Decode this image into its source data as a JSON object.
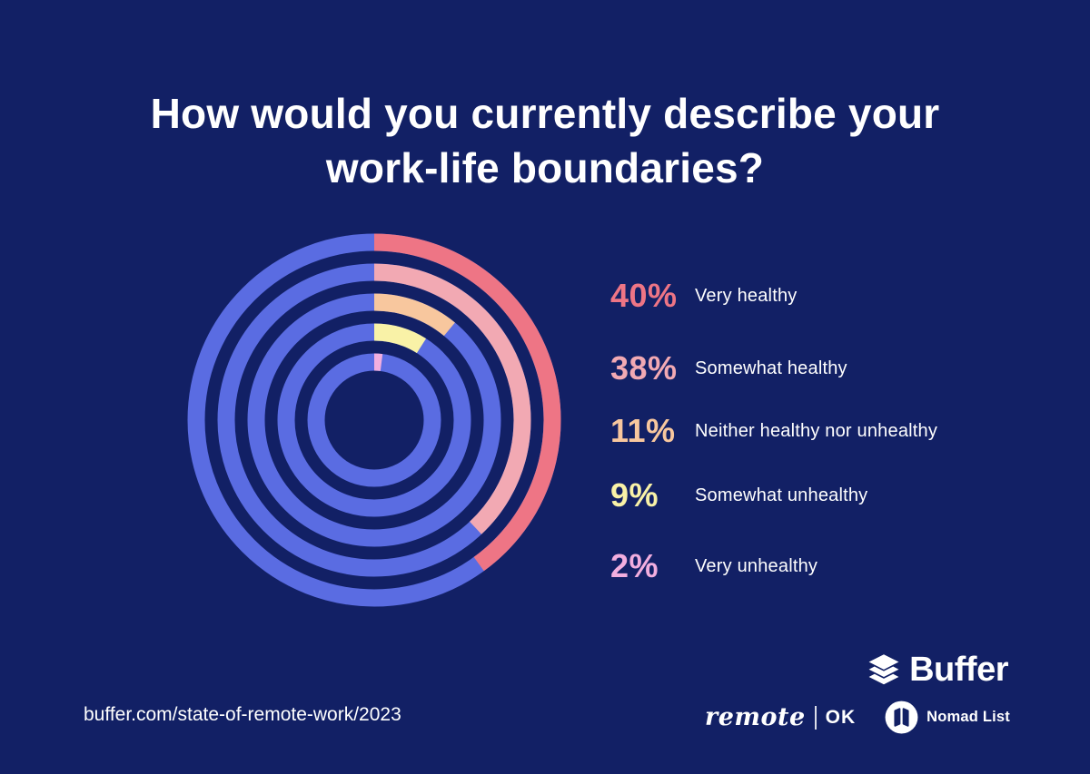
{
  "title": {
    "text": "How would you currently describe your work-life boundaries?"
  },
  "chart_data": {
    "type": "radial-bar",
    "title": "How would you currently describe your work-life boundaries?",
    "categories": [
      "Very healthy",
      "Somewhat healthy",
      "Neither healthy nor unhealthy",
      "Somewhat unhealthy",
      "Very unhealthy"
    ],
    "values": [
      40,
      38,
      11,
      9,
      2
    ],
    "colors": [
      "#EE7585",
      "#F2A9B3",
      "#F8C79E",
      "#F9F2A7",
      "#F2AEDF"
    ],
    "track_color": "#5A6CE2",
    "start_angle": "12 o'clock",
    "direction": "clockwise",
    "rings_order": "outermost = Very healthy (40%), innermost = Very unhealthy (2%)",
    "legend_position": "right",
    "value_unit": "%"
  },
  "legend": {
    "items": [
      {
        "value_label": "40%",
        "label": "Very healthy"
      },
      {
        "value_label": "38%",
        "label": "Somewhat healthy"
      },
      {
        "value_label": "11%",
        "label": "Neither healthy nor unhealthy"
      },
      {
        "value_label": "9%",
        "label": "Somewhat unhealthy"
      },
      {
        "value_label": "2%",
        "label": "Very unhealthy"
      }
    ]
  },
  "footer": {
    "source_url": "buffer.com/state-of-remote-work/2023",
    "buffer_logo_text": "Buffer",
    "remoteok": {
      "script_text": "remote",
      "suffix": "OK"
    },
    "nomadlist": {
      "text": "Nomad List"
    }
  },
  "palette": {
    "background": "#122065",
    "text": "#FFFFFF"
  }
}
